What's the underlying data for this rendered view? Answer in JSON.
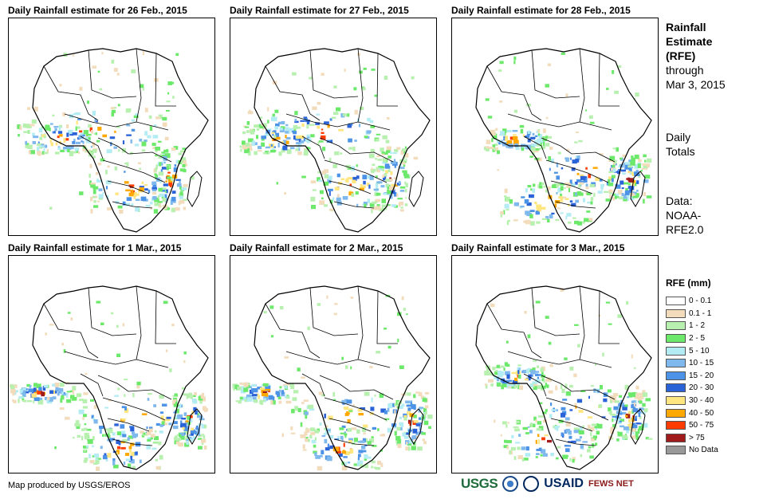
{
  "panels": [
    {
      "title": "Daily Rainfall estimate for 26 Feb., 2015",
      "seed": 11,
      "focus": "central"
    },
    {
      "title": "Daily Rainfall estimate for 27 Feb., 2015",
      "seed": 23,
      "focus": "central"
    },
    {
      "title": "Daily Rainfall estimate for 28 Feb., 2015",
      "seed": 37,
      "focus": "east"
    },
    {
      "title": "Daily Rainfall estimate for 1 Mar., 2015",
      "seed": 41,
      "focus": "south"
    },
    {
      "title": "Daily Rainfall estimate for 2 Mar., 2015",
      "seed": 53,
      "focus": "south"
    },
    {
      "title": "Daily Rainfall estimate for 3 Mar., 2015",
      "seed": 67,
      "focus": "east"
    }
  ],
  "side": {
    "title_line1": "Rainfall",
    "title_line2": "Estimate",
    "title_line3": "(RFE)",
    "through_line1": "through",
    "through_line2": "Mar 3, 2015",
    "totals_line1": "Daily",
    "totals_line2": "Totals",
    "data_line1": "Data:",
    "data_line2": "NOAA-",
    "data_line3": "RFE2.0"
  },
  "legend": {
    "title": "RFE (mm)",
    "items": [
      {
        "label": "0 - 0.1",
        "color": "#ffffff"
      },
      {
        "label": "0.1 - 1",
        "color": "#f2dcbc"
      },
      {
        "label": "1 - 2",
        "color": "#b8f0b0"
      },
      {
        "label": "2 - 5",
        "color": "#6ce86a"
      },
      {
        "label": "5 - 10",
        "color": "#b4ecf4"
      },
      {
        "label": "10 - 15",
        "color": "#7fb8ec"
      },
      {
        "label": "15 - 20",
        "color": "#4c92e6"
      },
      {
        "label": "20 - 30",
        "color": "#2a62d8"
      },
      {
        "label": "30 - 40",
        "color": "#ffe680"
      },
      {
        "label": "40 - 50",
        "color": "#ffa800"
      },
      {
        "label": "50 - 75",
        "color": "#ff3c00"
      },
      {
        "label": "> 75",
        "color": "#a01c1c"
      },
      {
        "label": "No Data",
        "color": "#999999"
      }
    ]
  },
  "credit": "Map produced by USGS/EROS",
  "logos": {
    "usgs": "USGS",
    "usaid": "USAID",
    "fews": "FEWS NET"
  }
}
